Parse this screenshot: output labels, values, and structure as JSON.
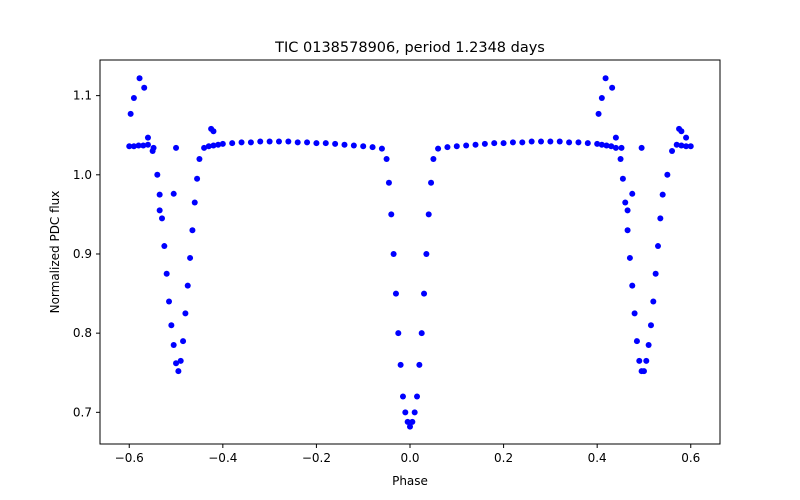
{
  "chart_data": {
    "type": "scatter",
    "title": "TIC 0138578906, period 1.2348 days",
    "xlabel": "Phase",
    "ylabel": "Normalized PDC flux",
    "xlim": [
      -0.6625,
      0.6625
    ],
    "ylim": [
      0.66,
      1.145
    ],
    "xticks": [
      -0.6,
      -0.4,
      -0.2,
      0.0,
      0.2,
      0.4,
      0.6
    ],
    "xtick_labels": [
      "−0.6",
      "−0.4",
      "−0.2",
      "0.0",
      "0.2",
      "0.4",
      "0.6"
    ],
    "yticks": [
      0.7,
      0.8,
      0.9,
      1.0,
      1.1
    ],
    "ytick_labels": [
      "0.7",
      "0.8",
      "0.9",
      "1.0",
      "1.1"
    ],
    "grid": false,
    "legend": "none",
    "marker_color": "#0000ff",
    "series": [
      {
        "marker": "circle",
        "x": [
          -0.6,
          -0.59,
          -0.58,
          -0.57,
          -0.56,
          -0.55,
          -0.54,
          -0.535,
          -0.53,
          -0.525,
          -0.52,
          -0.515,
          -0.51,
          -0.505,
          -0.5,
          -0.495,
          -0.49,
          -0.485,
          -0.48,
          -0.475,
          -0.47,
          -0.465,
          -0.46,
          -0.455,
          -0.45,
          -0.44,
          -0.43,
          -0.42,
          -0.41,
          -0.4,
          -0.38,
          -0.36,
          -0.34,
          -0.32,
          -0.3,
          -0.28,
          -0.26,
          -0.24,
          -0.22,
          -0.2,
          -0.18,
          -0.16,
          -0.14,
          -0.12,
          -0.1,
          -0.08,
          -0.06,
          -0.05,
          -0.045,
          -0.04,
          -0.035,
          -0.03,
          -0.025,
          -0.02,
          -0.015,
          -0.01,
          -0.005,
          0.0,
          0.005,
          0.01,
          0.015,
          0.02,
          0.025,
          0.03,
          0.035,
          0.04,
          0.045,
          0.05,
          0.06,
          0.08,
          0.1,
          0.12,
          0.14,
          0.16,
          0.18,
          0.2,
          0.22,
          0.24,
          0.26,
          0.28,
          0.3,
          0.32,
          0.34,
          0.36,
          0.38,
          0.4,
          0.41,
          0.42,
          0.43,
          0.44,
          0.45,
          0.455,
          0.46,
          0.465,
          0.47,
          0.475,
          0.48,
          0.485,
          0.49,
          0.495,
          0.5,
          0.505,
          0.51,
          0.515,
          0.52,
          0.525,
          0.53,
          0.535,
          0.54,
          0.55,
          0.56,
          0.57,
          0.58,
          0.59,
          0.6,
          -0.597,
          -0.59,
          -0.578,
          -0.568,
          -0.56,
          -0.548,
          -0.535,
          -0.505,
          -0.5,
          -0.425,
          -0.42,
          0.403,
          0.41,
          0.418,
          0.432,
          0.44,
          0.452,
          0.465,
          0.475,
          0.495,
          0.575,
          0.58,
          0.59
        ],
        "y": [
          1.036,
          1.036,
          1.037,
          1.037,
          1.038,
          1.03,
          1.0,
          0.975,
          0.945,
          0.91,
          0.875,
          0.84,
          0.81,
          0.785,
          0.762,
          0.752,
          0.765,
          0.79,
          0.825,
          0.86,
          0.895,
          0.93,
          0.965,
          0.995,
          1.02,
          1.034,
          1.036,
          1.037,
          1.038,
          1.039,
          1.04,
          1.041,
          1.041,
          1.042,
          1.042,
          1.042,
          1.042,
          1.041,
          1.041,
          1.04,
          1.04,
          1.039,
          1.038,
          1.037,
          1.036,
          1.035,
          1.033,
          1.02,
          0.99,
          0.95,
          0.9,
          0.85,
          0.8,
          0.76,
          0.72,
          0.7,
          0.688,
          0.682,
          0.688,
          0.7,
          0.72,
          0.76,
          0.8,
          0.85,
          0.9,
          0.95,
          0.99,
          1.02,
          1.033,
          1.035,
          1.036,
          1.037,
          1.038,
          1.039,
          1.04,
          1.04,
          1.041,
          1.041,
          1.042,
          1.042,
          1.042,
          1.042,
          1.041,
          1.041,
          1.04,
          1.039,
          1.038,
          1.037,
          1.036,
          1.034,
          1.02,
          0.995,
          0.965,
          0.93,
          0.895,
          0.86,
          0.825,
          0.79,
          0.765,
          0.752,
          0.752,
          0.765,
          0.785,
          0.81,
          0.84,
          0.875,
          0.91,
          0.945,
          0.975,
          1.0,
          1.03,
          1.038,
          1.037,
          1.036,
          1.036,
          1.077,
          1.097,
          1.122,
          1.11,
          1.047,
          1.034,
          0.955,
          0.976,
          1.034,
          1.058,
          1.055,
          1.077,
          1.097,
          1.122,
          1.11,
          1.047,
          1.034,
          0.955,
          0.976,
          1.034,
          1.058,
          1.055,
          1.047
        ]
      }
    ]
  }
}
